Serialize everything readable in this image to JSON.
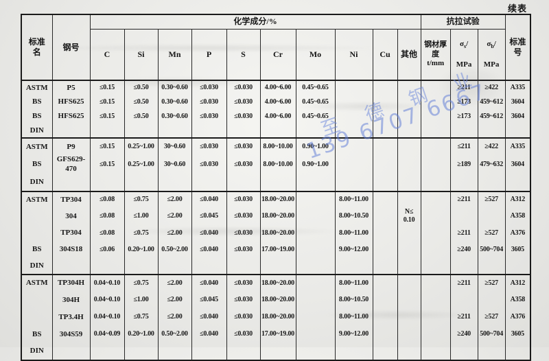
{
  "page": {
    "continued_label": "续表"
  },
  "watermark": {
    "company": "至 德 钢 业",
    "phone": "139 6707 6667"
  },
  "header": {
    "std_name": "标准\n名",
    "grade": "钢号",
    "chem": "化学成分/%",
    "chem_cols": [
      "C",
      "Si",
      "Mn",
      "P",
      "S",
      "Cr",
      "Mo",
      "Ni",
      "Cu",
      "其他"
    ],
    "tensile": "抗拉试验",
    "thickness": "钢材厚度\nt/mm",
    "sigma_s": {
      "sym": "σ",
      "sub": "s",
      "rest": "/",
      "unit": "MPa"
    },
    "sigma_b": {
      "sym": "σ",
      "sub": "b",
      "rest": "/",
      "unit": "MPa"
    },
    "std_no": "标准\n号"
  },
  "blocks": [
    {
      "rows": [
        [
          "ASTM",
          "P5",
          "≤0.15",
          "≤0.50",
          "0.30~0.60",
          "≤0.030",
          "≤0.030",
          "4.00~6.00",
          "0.45~0.65",
          "",
          "",
          "",
          "",
          "≥211",
          "≥422",
          "A335"
        ],
        [
          "BS",
          "HFS625",
          "≤0.15",
          "≤0.50",
          "0.30~0.60",
          "≤0.030",
          "≤0.030",
          "4.00~6.00",
          "0.45~0.65",
          "",
          "",
          "",
          "",
          "≥173",
          "459~612",
          "3604"
        ],
        [
          "BS",
          "HFS625",
          "≤0.15",
          "≤0.50",
          "0.30~0.60",
          "≤0.030",
          "≤0.030",
          "4.00~6.00",
          "0.45~0.65",
          "",
          "",
          "",
          "",
          "≥173",
          "459~612",
          "3604"
        ],
        [
          "DIN",
          "",
          "",
          "",
          "",
          "",
          "",
          "",
          "",
          "",
          "",
          "",
          "",
          "",
          "",
          ""
        ]
      ]
    },
    {
      "rows": [
        [
          "ASTM",
          "P9",
          "≤0.15",
          "0.25~1.00",
          "30~0.60",
          "≤0.030",
          "≤0.030",
          "8.00~10.00",
          "0.90~1.00",
          "",
          "",
          "",
          "",
          "≤211",
          "≥422",
          "A335"
        ],
        [
          "BS",
          "GFS629-470",
          "≤0.15",
          "0.25~1.00",
          "30~0.60",
          "≤0.030",
          "≤0.030",
          "8.00~10.00",
          "0.90~1.00",
          "",
          "",
          "",
          "",
          "≥189",
          "479~632",
          "3604"
        ],
        [
          "DIN",
          "",
          "",
          "",
          "",
          "",
          "",
          "",
          "",
          "",
          "",
          "",
          "",
          "",
          "",
          ""
        ]
      ]
    },
    {
      "rows": [
        [
          "ASTM",
          "TP304",
          "≤0.08",
          "≤0.75",
          "≤2.00",
          "≤0.040",
          "≤0.030",
          "18.00~20.00",
          "",
          "8.00~11.00",
          "",
          "",
          "",
          "≥211",
          "≥527",
          "A312"
        ],
        [
          "",
          "304",
          "≤0.08",
          "≤1.00",
          "≤2.00",
          "≤0.045",
          "≤0.030",
          "18.00~20.00",
          "",
          "8.00~10.50",
          "",
          "N≤\n0.10",
          "",
          "",
          "",
          "A358"
        ],
        [
          "",
          "TP304",
          "≤0.08",
          "≤0.75",
          "≤2.00",
          "≤0.040",
          "≤0.030",
          "18.00~20.00",
          "",
          "8.00~11.00",
          "",
          "",
          "",
          "≥211",
          "≥527",
          "A376"
        ],
        [
          "BS",
          "304S18",
          "≤0.06",
          "0.20~1.00",
          "0.50~2.00",
          "≤0.040",
          "≤0.030",
          "17.00~19.00",
          "",
          "9.00~12.00",
          "",
          "",
          "",
          "≥240",
          "500~704",
          "3605"
        ],
        [
          "DIN",
          "",
          "",
          "",
          "",
          "",
          "",
          "",
          "",
          "",
          "",
          "",
          "",
          "",
          "",
          ""
        ]
      ]
    },
    {
      "rows": [
        [
          "ASTM",
          "TP304H",
          "0.04~0.10",
          "≤0.75",
          "≤2.00",
          "≤0.040",
          "≤0.030",
          "18.00~20.00",
          "",
          "8.00~11.00",
          "",
          "",
          "",
          "≥211",
          "≥527",
          "A312"
        ],
        [
          "",
          "304H",
          "0.04~0.10",
          "≤1.00",
          "≤2.00",
          "≤0.045",
          "≤0.030",
          "18.00~20.00",
          "",
          "8.00~10.50",
          "",
          "",
          "",
          "",
          "",
          "A358"
        ],
        [
          "",
          "TP3.4H",
          "0.04~0.10",
          "≤0.75",
          "≤2.00",
          "≤0.040",
          "≤0.030",
          "18.00~20.00",
          "",
          "8.00~11.00",
          "",
          "",
          "",
          "≥211",
          "≥527",
          "A376"
        ],
        [
          "BS",
          "304S59",
          "0.04~0.09",
          "0.20~1.00",
          "0.50~2.00",
          "≤0.040",
          "≤0.030",
          "17.00~19.00",
          "",
          "9.00~12.00",
          "",
          "",
          "",
          "≥240",
          "500~704",
          "3605"
        ],
        [
          "DIN",
          "",
          "",
          "",
          "",
          "",
          "",
          "",
          "",
          "",
          "",
          "",
          "",
          "",
          "",
          ""
        ]
      ]
    }
  ]
}
